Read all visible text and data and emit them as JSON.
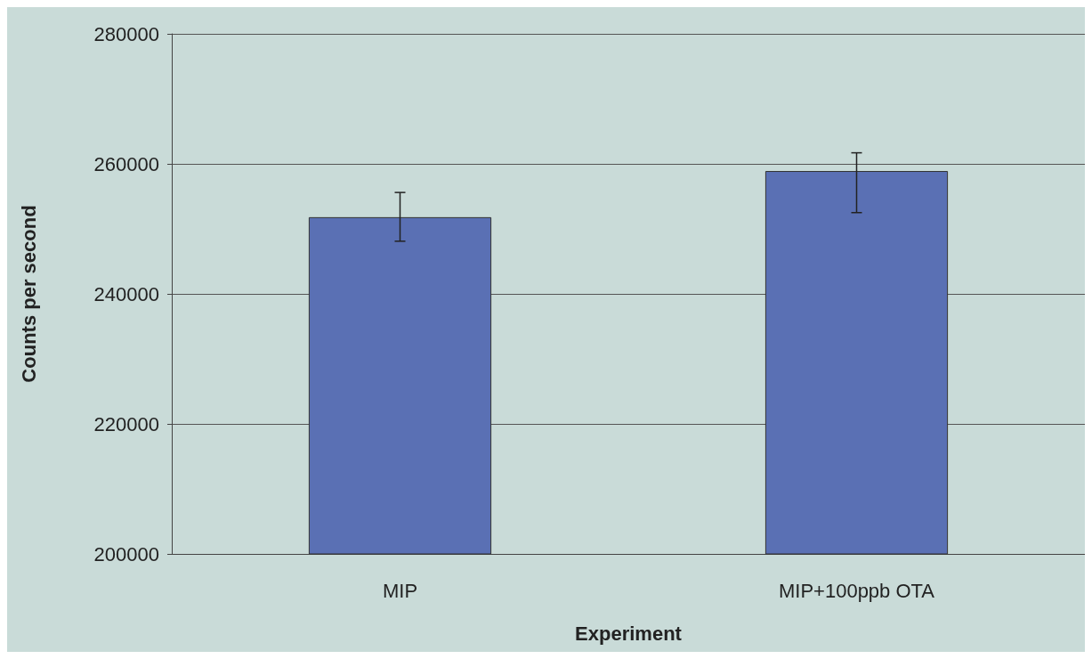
{
  "chart_data": {
    "type": "bar",
    "xlabel": "Experiment",
    "ylabel": "Counts per second",
    "categories": [
      "MIP",
      "MIP+100ppb OTA"
    ],
    "values": [
      251800,
      258900
    ],
    "errors": [
      [
        248100,
        255600
      ],
      [
        252500,
        261700
      ]
    ],
    "color": "#5a70b4",
    "ylim": [
      200000,
      280000
    ],
    "yticks": [
      200000,
      220000,
      240000,
      260000,
      280000
    ],
    "grid": "y"
  }
}
